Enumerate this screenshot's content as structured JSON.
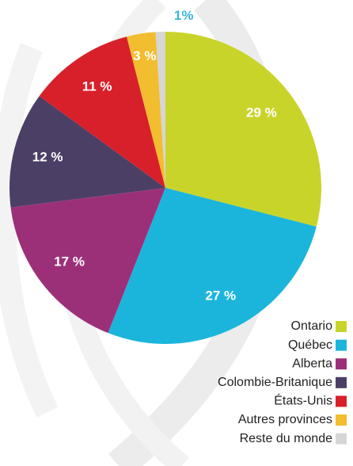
{
  "chart_data": {
    "type": "pie",
    "categories": [
      "Ontario",
      "Québec",
      "Alberta",
      "Colombie-Britanique",
      "États-Unis",
      "Autres provinces",
      "Reste du monde"
    ],
    "values": [
      29,
      27,
      17,
      12,
      11,
      3,
      1
    ],
    "value_labels": [
      "29 %",
      "27 %",
      "17 %",
      "12 %",
      "11 %",
      "3 %",
      "1%"
    ],
    "colors": [
      "#c9d42a",
      "#1bb5dc",
      "#9c3078",
      "#4b3f66",
      "#d8202a",
      "#f2bd2e",
      "#d6d6d6"
    ],
    "legend": "bottom-right"
  }
}
